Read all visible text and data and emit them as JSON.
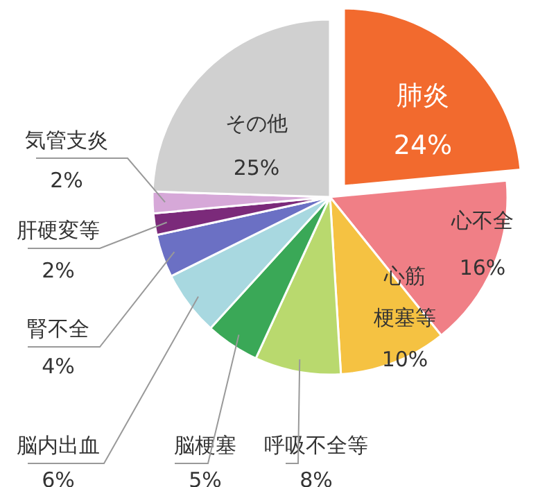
{
  "chart_data": {
    "type": "pie",
    "categories": [
      "肺炎",
      "心不全",
      "心筋梗塞等",
      "呼吸不全等",
      "脳梗塞",
      "脳内出血",
      "腎不全",
      "肝硬変等",
      "気管支炎",
      "その他"
    ],
    "values": [
      24,
      16,
      10,
      8,
      5,
      6,
      4,
      2,
      2,
      25
    ],
    "value_labels": [
      "24%",
      "16%",
      "10%",
      "8%",
      "5%",
      "6%",
      "4%",
      "2%",
      "2%",
      "25%"
    ],
    "colors": [
      "#f26a2e",
      "#f07f86",
      "#f5c242",
      "#b9d96e",
      "#3aa857",
      "#a8d8e0",
      "#6b70c4",
      "#7b2a7a",
      "#d6a8d8",
      "#d0d0d0"
    ]
  }
}
